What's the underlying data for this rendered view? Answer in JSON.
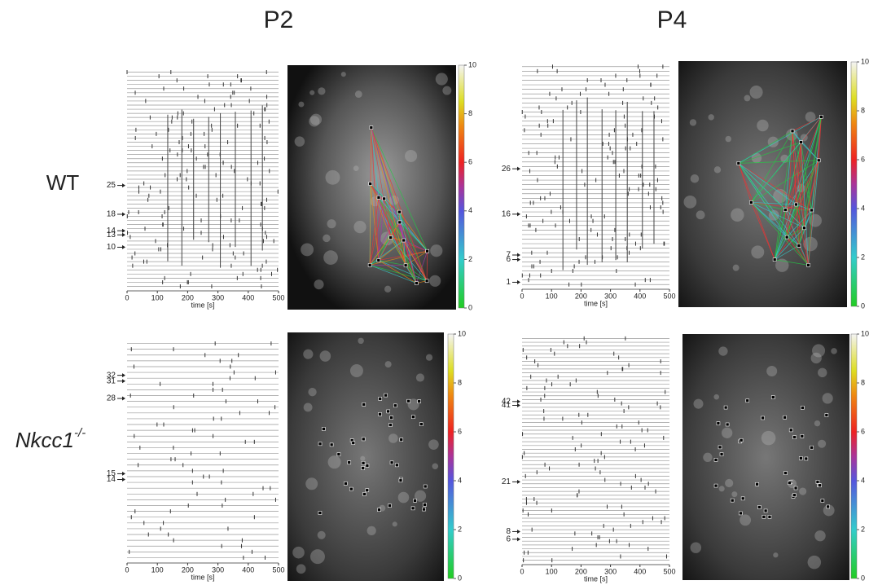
{
  "columns": [
    "P2",
    "P4"
  ],
  "rows": [
    {
      "label": "WT",
      "panels": [
        {
          "x_label": "time [s]",
          "xlim": [
            0,
            500
          ],
          "xticks": [
            0,
            100,
            200,
            300,
            400,
            500
          ],
          "ylim": [
            0,
            53
          ],
          "cell_labels": [
            25,
            18,
            14,
            13,
            10
          ],
          "colorbar_ticks": [
            0,
            2,
            4,
            6,
            8,
            10
          ]
        },
        {
          "x_label": "time [s]",
          "xlim": [
            0,
            500
          ],
          "xticks": [
            0,
            100,
            200,
            300,
            400,
            500
          ],
          "ylim": [
            0,
            49
          ],
          "cell_labels": [
            26,
            16,
            7,
            6,
            1
          ],
          "colorbar_ticks": [
            0,
            2,
            4,
            6,
            8,
            10
          ]
        }
      ]
    },
    {
      "label": "Nkcc1",
      "label_superscript": "-/-",
      "panels": [
        {
          "x_label": "time [s]",
          "xlim": [
            0,
            500
          ],
          "xticks": [
            0,
            100,
            200,
            300,
            400,
            500
          ],
          "ylim": [
            0,
            38
          ],
          "cell_labels": [
            32,
            31,
            28,
            15,
            14
          ],
          "colorbar_ticks": [
            0,
            2,
            4,
            6,
            8,
            10
          ]
        },
        {
          "x_label": "time [s]",
          "xlim": [
            0,
            500
          ],
          "xticks": [
            0,
            100,
            200,
            300,
            400,
            500
          ],
          "ylim": [
            0,
            59
          ],
          "cell_labels": [
            42,
            41,
            21,
            8,
            6
          ],
          "colorbar_ticks": [
            0,
            2,
            4,
            6,
            8,
            10
          ]
        }
      ]
    }
  ]
}
